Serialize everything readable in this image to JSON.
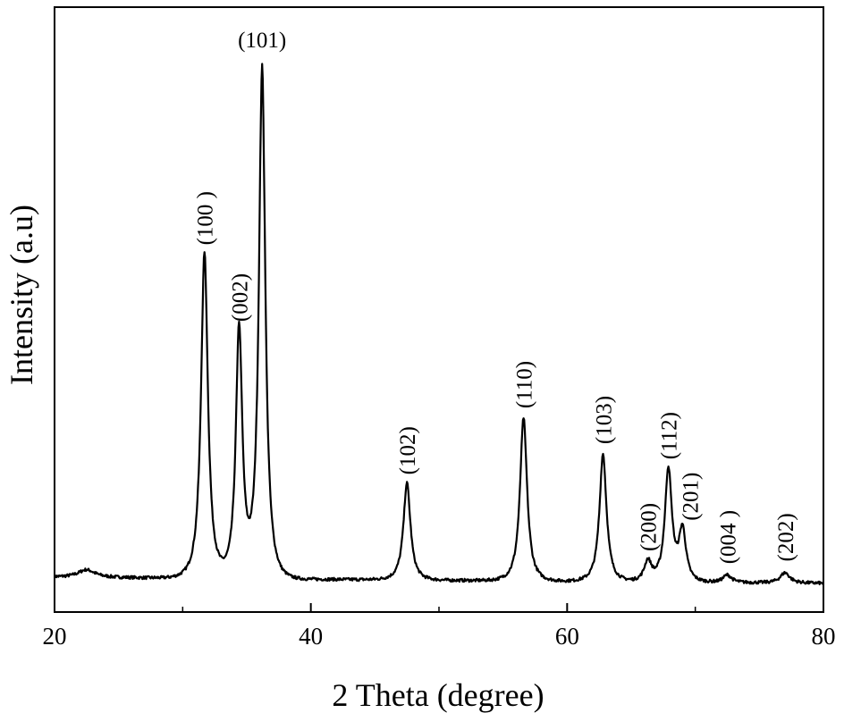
{
  "chart_data": {
    "type": "line",
    "title": "",
    "xlabel": "2 Theta (degree)",
    "ylabel": "Intensity (a.u)",
    "xlim": [
      20,
      80
    ],
    "ylim": [
      0,
      1.06
    ],
    "xticks": [
      20,
      40,
      60,
      80
    ],
    "xtick_labels": [
      "20",
      "40",
      "60",
      "80"
    ],
    "yticks_shown": false,
    "grid": false,
    "line_color": "#000000",
    "baseline": 0.03,
    "peaks": [
      {
        "label": "(100 )",
        "x": 31.7,
        "y": 0.64,
        "w": 0.32
      },
      {
        "label": "(002)",
        "x": 34.4,
        "y": 0.49,
        "w": 0.3
      },
      {
        "label": "(101)",
        "x": 36.2,
        "y": 1.0,
        "w": 0.3
      },
      {
        "label": "(102)",
        "x": 47.5,
        "y": 0.19,
        "w": 0.33
      },
      {
        "label": "(110)",
        "x": 56.6,
        "y": 0.32,
        "w": 0.33
      },
      {
        "label": "(103)",
        "x": 62.8,
        "y": 0.25,
        "w": 0.33
      },
      {
        "label": "(200)",
        "x": 66.3,
        "y": 0.04,
        "w": 0.35
      },
      {
        "label": "(112)",
        "x": 67.9,
        "y": 0.22,
        "w": 0.33
      },
      {
        "label": "(201)",
        "x": 69.0,
        "y": 0.1,
        "w": 0.33
      },
      {
        "label": "(004 )",
        "x": 72.5,
        "y": 0.015,
        "w": 0.4
      },
      {
        "label": "(202)",
        "x": 77.0,
        "y": 0.02,
        "w": 0.45
      }
    ],
    "background_bumps": [
      {
        "x": 22.5,
        "y": 0.015,
        "w": 0.8
      }
    ]
  }
}
